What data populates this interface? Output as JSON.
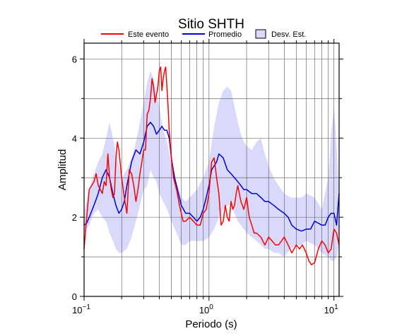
{
  "chart_data": {
    "type": "line",
    "title": "Sitio SHTH",
    "xlabel": "Periodo (s)",
    "ylabel": "Amplitud",
    "x_scale": "log",
    "xlim": [
      0.1,
      11
    ],
    "ylim": [
      0,
      6.4
    ],
    "grid": true,
    "legend": "top",
    "x_tick_labels": [
      {
        "value": 0.1,
        "base": "10",
        "exp": "−1"
      },
      {
        "value": 1,
        "base": "10",
        "exp": "0"
      },
      {
        "value": 10,
        "base": "10",
        "exp": "1"
      }
    ],
    "y_tick_labels": [
      0,
      2,
      4,
      6
    ],
    "band": {
      "name": "Desv. Est.",
      "color": "#d9d9fb",
      "x": [
        0.1,
        0.11,
        0.12,
        0.13,
        0.14,
        0.15,
        0.16,
        0.17,
        0.18,
        0.19,
        0.2,
        0.22,
        0.24,
        0.26,
        0.28,
        0.3,
        0.32,
        0.34,
        0.36,
        0.38,
        0.4,
        0.43,
        0.46,
        0.5,
        0.55,
        0.6,
        0.65,
        0.7,
        0.8,
        0.9,
        1.0,
        1.1,
        1.2,
        1.3,
        1.4,
        1.5,
        1.6,
        1.7,
        1.8,
        1.9,
        2.0,
        2.2,
        2.4,
        2.6,
        2.8,
        3.0,
        3.3,
        3.6,
        4.0,
        4.5,
        5.0,
        5.5,
        6.0,
        7.0,
        8.0,
        9.0,
        9.5,
        10.0,
        10.5,
        11.0
      ],
      "lower": [
        1.6,
        1.8,
        2.1,
        2.2,
        2.0,
        1.9,
        1.6,
        1.4,
        1.2,
        1.1,
        1.1,
        1.2,
        1.5,
        1.9,
        2.3,
        2.7,
        2.8,
        3.2,
        3.0,
        2.9,
        2.6,
        2.4,
        2.2,
        1.9,
        1.6,
        1.3,
        1.3,
        1.4,
        1.4,
        1.4,
        1.5,
        1.7,
        2.0,
        2.2,
        2.3,
        2.3,
        2.1,
        1.9,
        1.8,
        1.7,
        1.6,
        1.5,
        1.4,
        1.3,
        1.2,
        1.2,
        1.1,
        1.1,
        1.0,
        1.2,
        1.3,
        1.3,
        1.4,
        1.3,
        1.1,
        1.0,
        0.9,
        0.9,
        1.0,
        1.3
      ],
      "upper": [
        2.1,
        2.7,
        3.1,
        3.4,
        3.6,
        4.0,
        4.4,
        4.0,
        3.6,
        3.3,
        3.0,
        3.2,
        3.5,
        3.9,
        4.4,
        4.9,
        5.4,
        5.7,
        5.5,
        5.1,
        4.8,
        4.2,
        3.9,
        3.4,
        2.9,
        2.5,
        2.4,
        2.5,
        2.7,
        3.0,
        3.4,
        4.3,
        4.9,
        5.2,
        5.3,
        5.2,
        4.8,
        4.4,
        4.1,
        3.9,
        3.8,
        3.7,
        3.9,
        4.0,
        3.6,
        3.3,
        3.0,
        2.8,
        2.6,
        2.5,
        2.5,
        2.5,
        2.6,
        2.5,
        2.2,
        3.0,
        4.1,
        4.8,
        3.8,
        2.6
      ]
    },
    "series": [
      {
        "name": "Este evento",
        "color": "#ff0000",
        "x": [
          0.1,
          0.105,
          0.11,
          0.115,
          0.12,
          0.125,
          0.13,
          0.135,
          0.14,
          0.145,
          0.15,
          0.155,
          0.16,
          0.165,
          0.17,
          0.175,
          0.18,
          0.185,
          0.19,
          0.2,
          0.21,
          0.22,
          0.23,
          0.24,
          0.25,
          0.26,
          0.27,
          0.28,
          0.29,
          0.3,
          0.31,
          0.32,
          0.33,
          0.34,
          0.35,
          0.36,
          0.37,
          0.38,
          0.39,
          0.4,
          0.41,
          0.42,
          0.43,
          0.44,
          0.45,
          0.46,
          0.47,
          0.48,
          0.5,
          0.52,
          0.55,
          0.58,
          0.6,
          0.62,
          0.65,
          0.7,
          0.75,
          0.8,
          0.85,
          0.9,
          0.95,
          1.0,
          1.05,
          1.1,
          1.15,
          1.2,
          1.25,
          1.3,
          1.35,
          1.4,
          1.45,
          1.5,
          1.55,
          1.6,
          1.65,
          1.7,
          1.8,
          1.9,
          2.0,
          2.1,
          2.2,
          2.3,
          2.4,
          2.6,
          2.8,
          3.0,
          3.2,
          3.4,
          3.6,
          3.8,
          4.0,
          4.3,
          4.6,
          5.0,
          5.3,
          5.6,
          6.0,
          6.3,
          6.6,
          7.0,
          7.5,
          8.0,
          8.5,
          9.0,
          9.5,
          10.0,
          10.5,
          11.0
        ],
        "y": [
          1.2,
          2.0,
          2.7,
          2.8,
          2.9,
          3.1,
          2.8,
          2.7,
          2.6,
          2.9,
          2.8,
          3.6,
          3.0,
          2.7,
          2.5,
          2.6,
          3.5,
          3.9,
          3.7,
          3.0,
          2.5,
          2.1,
          3.2,
          3.1,
          2.8,
          2.4,
          2.7,
          3.1,
          3.4,
          3.7,
          3.7,
          4.6,
          4.7,
          5.0,
          5.5,
          5.3,
          4.9,
          5.1,
          5.3,
          5.7,
          5.8,
          5.2,
          5.5,
          5.7,
          5.8,
          5.3,
          4.8,
          4.2,
          3.5,
          3.0,
          2.7,
          2.3,
          2.1,
          1.9,
          1.9,
          2.0,
          1.9,
          1.8,
          1.8,
          2.1,
          2.2,
          2.6,
          3.4,
          3.5,
          3.0,
          2.6,
          1.8,
          1.9,
          2.3,
          2.0,
          1.9,
          2.4,
          2.2,
          2.3,
          2.6,
          2.8,
          2.4,
          2.2,
          2.5,
          2.0,
          1.8,
          1.6,
          1.6,
          1.5,
          1.3,
          1.5,
          1.4,
          1.3,
          1.3,
          1.4,
          1.5,
          1.3,
          1.1,
          1.3,
          1.2,
          1.3,
          1.1,
          0.9,
          0.8,
          0.85,
          1.2,
          1.4,
          1.3,
          1.1,
          1.2,
          1.7,
          1.6,
          1.3
        ]
      },
      {
        "name": "Promedio",
        "color": "#0000dd",
        "x": [
          0.1,
          0.105,
          0.11,
          0.12,
          0.13,
          0.14,
          0.15,
          0.16,
          0.17,
          0.18,
          0.19,
          0.2,
          0.21,
          0.22,
          0.24,
          0.26,
          0.28,
          0.3,
          0.32,
          0.34,
          0.36,
          0.38,
          0.4,
          0.42,
          0.44,
          0.46,
          0.48,
          0.5,
          0.53,
          0.56,
          0.6,
          0.65,
          0.7,
          0.75,
          0.8,
          0.85,
          0.9,
          0.95,
          1.0,
          1.05,
          1.1,
          1.15,
          1.2,
          1.3,
          1.4,
          1.5,
          1.6,
          1.7,
          1.8,
          1.9,
          2.0,
          2.2,
          2.4,
          2.6,
          2.8,
          3.0,
          3.3,
          3.6,
          4.0,
          4.3,
          4.6,
          5.0,
          5.5,
          6.0,
          6.5,
          7.0,
          7.5,
          8.0,
          8.5,
          9.0,
          9.5,
          10.0,
          10.5,
          11.0
        ],
        "y": [
          1.8,
          1.85,
          2.0,
          2.3,
          2.6,
          3.0,
          3.2,
          3.0,
          2.6,
          2.3,
          2.1,
          2.2,
          2.4,
          2.8,
          3.4,
          3.7,
          3.6,
          3.9,
          4.3,
          4.4,
          4.3,
          4.1,
          4.2,
          4.3,
          4.2,
          4.2,
          4.0,
          3.5,
          3.0,
          2.7,
          2.3,
          2.1,
          2.1,
          2.0,
          1.9,
          2.0,
          2.2,
          2.5,
          2.8,
          3.2,
          3.3,
          3.4,
          3.6,
          3.5,
          3.2,
          3.1,
          3.0,
          2.9,
          2.8,
          2.7,
          2.7,
          2.6,
          2.6,
          2.5,
          2.4,
          2.4,
          2.3,
          2.2,
          2.1,
          2.0,
          1.8,
          1.7,
          1.65,
          1.7,
          1.7,
          1.9,
          1.85,
          1.8,
          1.8,
          2.0,
          2.1,
          2.1,
          1.8,
          2.6
        ]
      }
    ]
  }
}
